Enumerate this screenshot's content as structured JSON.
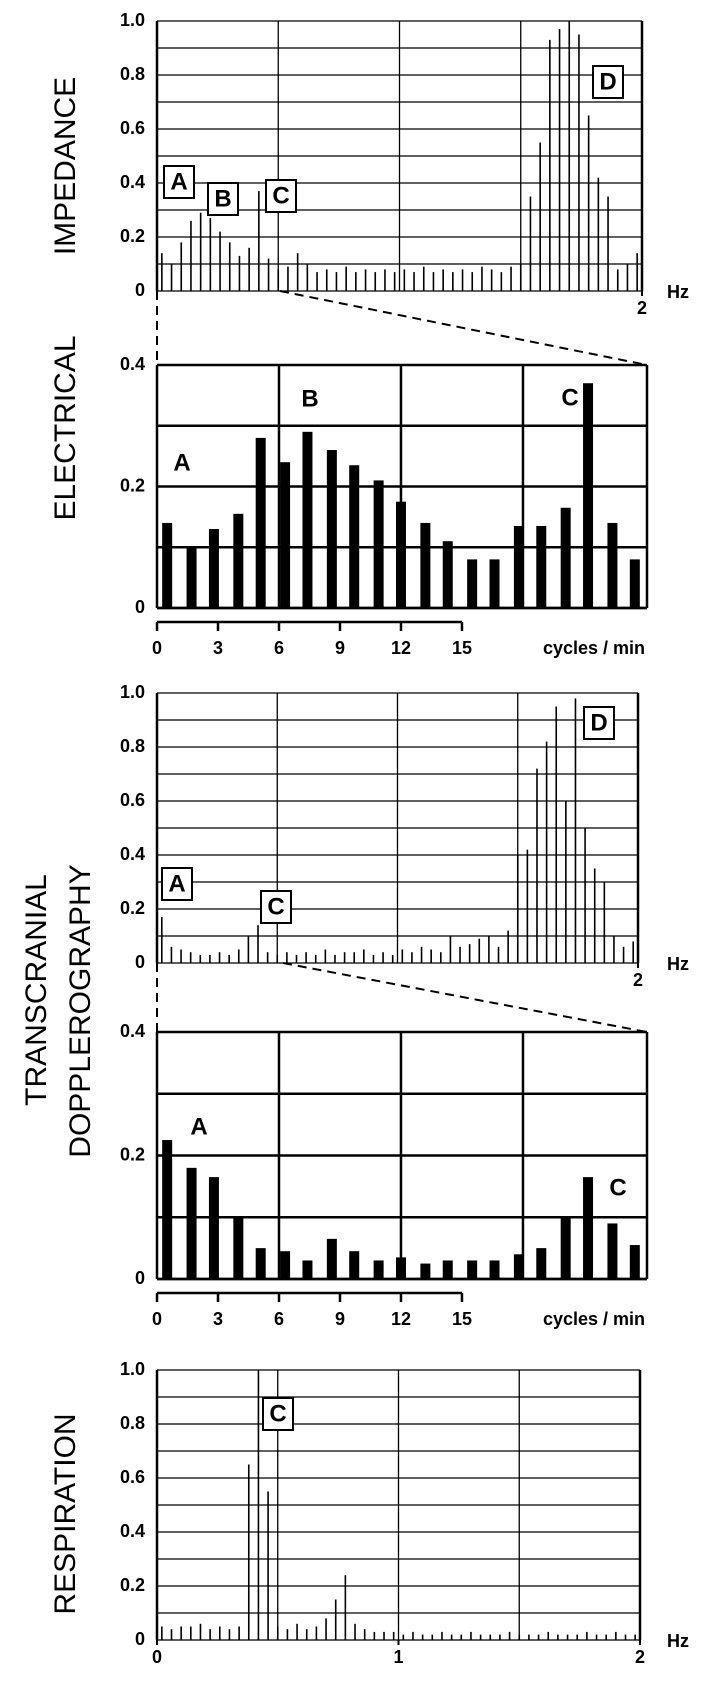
{
  "chart_data": [
    {
      "type": "bar",
      "ylabel": "IMPEDANCE",
      "color": "#000000",
      "grid": true,
      "xlim": [
        0,
        2
      ],
      "ylim": [
        0,
        1
      ],
      "xticks": [
        2
      ],
      "xlabel": "Hz",
      "yticks": [
        0,
        0.2,
        0.4,
        0.6,
        0.8,
        {
          "value": 1,
          "label": "1.0"
        }
      ],
      "xgrid": [
        0.5,
        1,
        1.5
      ],
      "ygrid": [
        0.1,
        0.3,
        0.5,
        0.7,
        0.9
      ],
      "annotations": [
        "A",
        "B",
        "C",
        "D"
      ],
      "x": [
        0.02,
        0.06,
        0.1,
        0.14,
        0.18,
        0.22,
        0.26,
        0.3,
        0.34,
        0.38,
        0.42,
        0.46,
        0.5,
        0.54,
        0.58,
        0.62,
        0.66,
        0.7,
        0.74,
        0.78,
        0.82,
        0.86,
        0.9,
        0.94,
        0.98,
        1.02,
        1.06,
        1.1,
        1.14,
        1.18,
        1.22,
        1.26,
        1.3,
        1.34,
        1.38,
        1.42,
        1.46,
        1.5,
        1.54,
        1.58,
        1.62,
        1.66,
        1.7,
        1.74,
        1.78,
        1.82,
        1.86,
        1.9,
        1.94,
        1.98
      ],
      "values": [
        0.14,
        0.1,
        0.18,
        0.26,
        0.29,
        0.27,
        0.22,
        0.18,
        0.13,
        0.16,
        0.37,
        0.12,
        0.08,
        0.09,
        0.14,
        0.1,
        0.07,
        0.08,
        0.07,
        0.09,
        0.07,
        0.08,
        0.07,
        0.08,
        0.07,
        0.08,
        0.07,
        0.09,
        0.07,
        0.08,
        0.07,
        0.08,
        0.07,
        0.09,
        0.08,
        0.07,
        0.09,
        0.1,
        0.35,
        0.55,
        0.93,
        0.97,
        1.0,
        0.95,
        0.65,
        0.42,
        0.35,
        0.08,
        0.1,
        0.14
      ]
    },
    {
      "type": "bar",
      "ylabel": "ELECTRICAL",
      "color": "#000000",
      "grid": true,
      "xlim": [
        0,
        24.1
      ],
      "ylim": [
        0,
        0.4
      ],
      "xticks": [
        0,
        3,
        6,
        9,
        12,
        15
      ],
      "xlabel": "cycles / min",
      "yticks": [
        0,
        0.2,
        0.4
      ],
      "xgrid": [
        6,
        12,
        18
      ],
      "ygrid": [
        0.1,
        0.3
      ],
      "annotations": [
        "A",
        "B",
        "C"
      ],
      "x": [
        0.5,
        1.7,
        2.8,
        4,
        5.1,
        6.3,
        7.4,
        8.6,
        9.7,
        10.9,
        12,
        13.2,
        14.3,
        15.5,
        16.6,
        17.8,
        18.9,
        20.1,
        21.2,
        22.4,
        23.5
      ],
      "values": [
        0.14,
        0.1,
        0.13,
        0.155,
        0.28,
        0.24,
        0.29,
        0.26,
        0.235,
        0.21,
        0.175,
        0.14,
        0.11,
        0.08,
        0.08,
        0.135,
        0.135,
        0.165,
        0.37,
        0.14,
        0.08
      ]
    },
    {
      "type": "bar",
      "ylabel": "TRANSCRANIAL",
      "color": "#000000",
      "grid": true,
      "xlim": [
        0,
        2
      ],
      "ylim": [
        0,
        1
      ],
      "xticks": [
        2
      ],
      "xlabel": "Hz",
      "yticks": [
        0,
        0.2,
        0.4,
        0.6,
        0.8,
        {
          "value": 1,
          "label": "1.0"
        }
      ],
      "xgrid": [
        0.5,
        1,
        1.5
      ],
      "ygrid": [
        0.1,
        0.3,
        0.5,
        0.7,
        0.9
      ],
      "annotations": [
        "A",
        "C",
        "D"
      ],
      "x": [
        0.02,
        0.06,
        0.1,
        0.14,
        0.18,
        0.22,
        0.26,
        0.3,
        0.34,
        0.38,
        0.42,
        0.46,
        0.5,
        0.54,
        0.58,
        0.62,
        0.66,
        0.7,
        0.74,
        0.78,
        0.82,
        0.86,
        0.9,
        0.94,
        0.98,
        1.02,
        1.06,
        1.1,
        1.14,
        1.18,
        1.22,
        1.26,
        1.3,
        1.34,
        1.38,
        1.42,
        1.46,
        1.5,
        1.54,
        1.58,
        1.62,
        1.66,
        1.7,
        1.74,
        1.78,
        1.82,
        1.86,
        1.9,
        1.94,
        1.98
      ],
      "values": [
        0.17,
        0.06,
        0.05,
        0.04,
        0.03,
        0.03,
        0.04,
        0.03,
        0.05,
        0.1,
        0.14,
        0.04,
        0.03,
        0.04,
        0.03,
        0.04,
        0.03,
        0.05,
        0.03,
        0.04,
        0.04,
        0.05,
        0.03,
        0.04,
        0.03,
        0.05,
        0.04,
        0.06,
        0.05,
        0.04,
        0.1,
        0.06,
        0.07,
        0.09,
        0.1,
        0.06,
        0.12,
        0.4,
        0.42,
        0.72,
        0.82,
        0.95,
        0.6,
        0.98,
        0.5,
        0.35,
        0.3,
        0.1,
        0.06,
        0.08
      ]
    },
    {
      "type": "bar",
      "ylabel": "DOPPLEROGRAPHY",
      "color": "#000000",
      "grid": true,
      "xlim": [
        0,
        24.1
      ],
      "ylim": [
        0,
        0.4
      ],
      "xticks": [
        0,
        3,
        6,
        9,
        12,
        15
      ],
      "xlabel": "cycles / min",
      "yticks": [
        0,
        0.2,
        0.4
      ],
      "xgrid": [
        6,
        12,
        18
      ],
      "ygrid": [
        0.1,
        0.3
      ],
      "annotations": [
        "A",
        "C"
      ],
      "x": [
        0.5,
        1.7,
        2.8,
        4,
        5.1,
        6.3,
        7.4,
        8.6,
        9.7,
        10.9,
        12,
        13.2,
        14.3,
        15.5,
        16.6,
        17.8,
        18.9,
        20.1,
        21.2,
        22.4,
        23.5
      ],
      "values": [
        0.225,
        0.18,
        0.165,
        0.1,
        0.05,
        0.045,
        0.03,
        0.065,
        0.045,
        0.03,
        0.035,
        0.025,
        0.03,
        0.03,
        0.03,
        0.04,
        0.05,
        0.1,
        0.165,
        0.09,
        0.055
      ]
    },
    {
      "type": "bar",
      "ylabel": "RESPIRATION",
      "color": "#000000",
      "grid": true,
      "xlim": [
        0,
        2
      ],
      "ylim": [
        0,
        1
      ],
      "xticks": [
        0,
        1,
        2
      ],
      "xlabel": "Hz",
      "yticks": [
        0,
        0.2,
        0.4,
        0.6,
        0.8,
        {
          "value": 1,
          "label": "1.0"
        }
      ],
      "xgrid": [
        0.5,
        1,
        1.5
      ],
      "ygrid": [
        0.1,
        0.3,
        0.5,
        0.7,
        0.9
      ],
      "annotations": [
        "C"
      ],
      "x": [
        0.02,
        0.06,
        0.1,
        0.14,
        0.18,
        0.22,
        0.26,
        0.3,
        0.34,
        0.38,
        0.42,
        0.46,
        0.5,
        0.54,
        0.58,
        0.62,
        0.66,
        0.7,
        0.74,
        0.78,
        0.82,
        0.86,
        0.9,
        0.94,
        0.98,
        1.02,
        1.06,
        1.1,
        1.14,
        1.18,
        1.22,
        1.26,
        1.3,
        1.34,
        1.38,
        1.42,
        1.46,
        1.5,
        1.54,
        1.58,
        1.62,
        1.66,
        1.7,
        1.74,
        1.78,
        1.82,
        1.86,
        1.9,
        1.94,
        1.98
      ],
      "values": [
        0.05,
        0.04,
        0.05,
        0.05,
        0.06,
        0.04,
        0.05,
        0.04,
        0.05,
        0.65,
        1.0,
        0.55,
        0.05,
        0.04,
        0.06,
        0.04,
        0.05,
        0.08,
        0.15,
        0.24,
        0.06,
        0.04,
        0.03,
        0.03,
        0.03,
        0.02,
        0.03,
        0.02,
        0.02,
        0.03,
        0.02,
        0.02,
        0.03,
        0.02,
        0.02,
        0.02,
        0.03,
        0.02,
        0.02,
        0.02,
        0.03,
        0.02,
        0.02,
        0.02,
        0.03,
        0.02,
        0.02,
        0.03,
        0.02,
        0.02
      ]
    }
  ]
}
